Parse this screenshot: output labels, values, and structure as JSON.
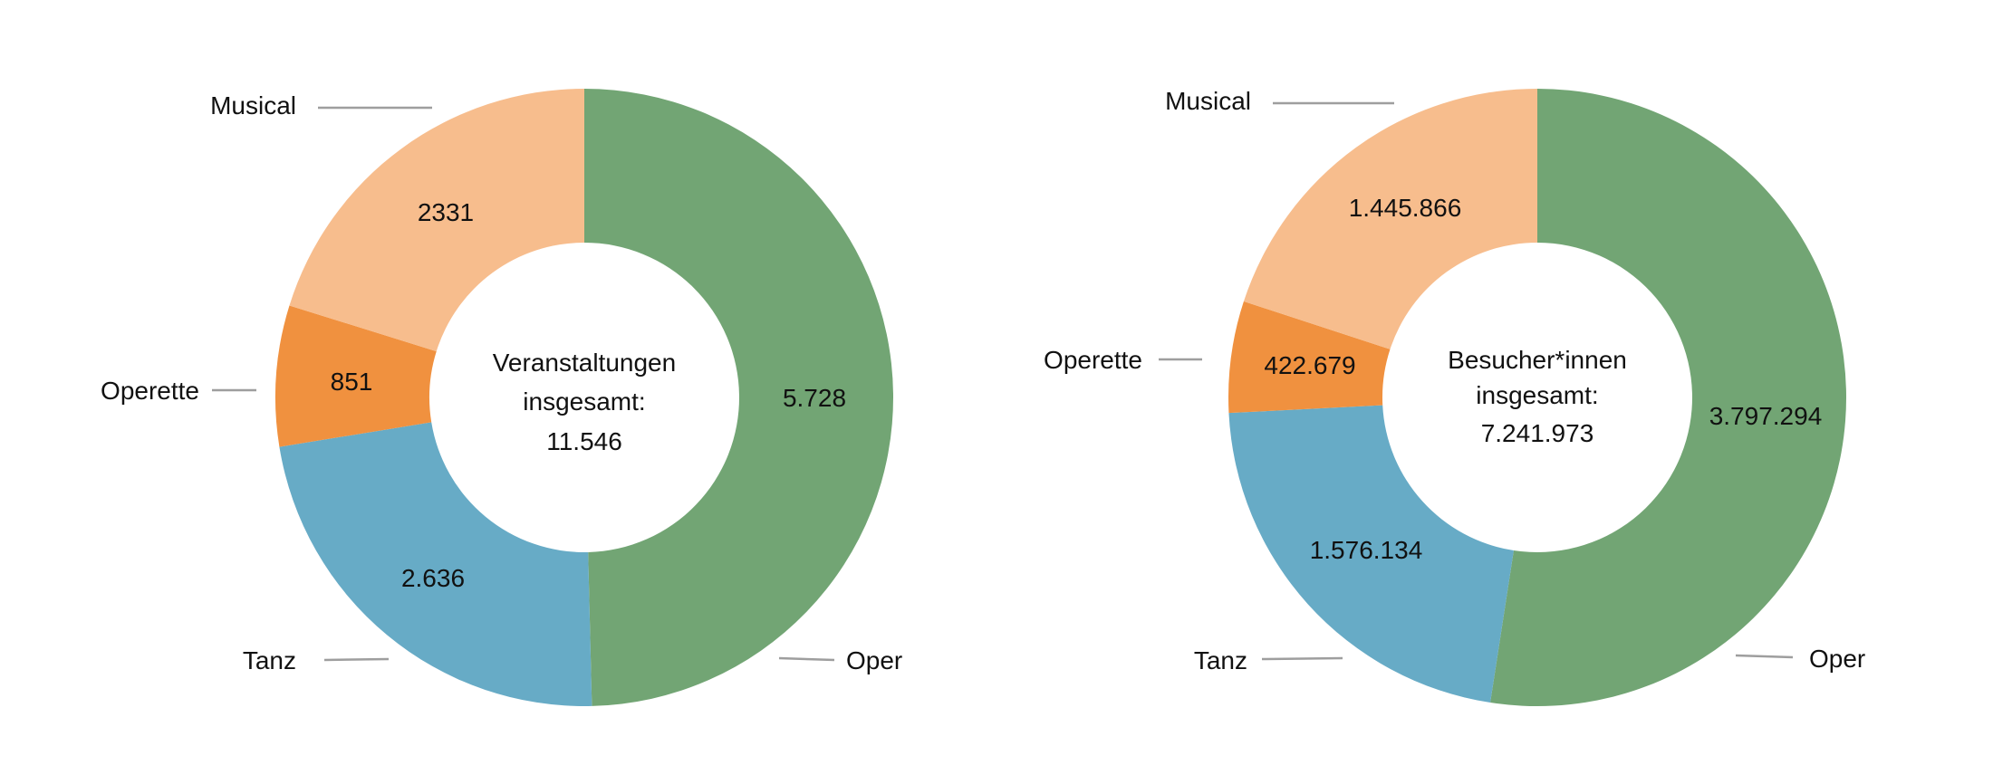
{
  "chart_data": [
    {
      "type": "pie",
      "donut": true,
      "categories": [
        "Oper",
        "Tanz",
        "Operette",
        "Musical"
      ],
      "values": [
        5728,
        2636,
        851,
        2331
      ],
      "value_labels": [
        "5.728",
        "2.636",
        "851",
        "2331"
      ],
      "center_label": [
        "Veranstaltungen",
        "insgesamt:",
        "11.546"
      ],
      "colors": [
        "#72a574",
        "#67abc6",
        "#f0913f",
        "#f7bd8d"
      ],
      "start": "top",
      "direction": "clockwise"
    },
    {
      "type": "pie",
      "donut": true,
      "categories": [
        "Oper",
        "Tanz",
        "Operette",
        "Musical"
      ],
      "values": [
        3797294,
        1576134,
        422679,
        1445866
      ],
      "value_labels": [
        "3.797.294",
        "1.576.134",
        "422.679",
        "1.445.866"
      ],
      "center_label": [
        "Besucher*innen",
        "insgesamt:",
        "7.241.973"
      ],
      "colors": [
        "#72a574",
        "#67abc6",
        "#f0913f",
        "#f7bd8d"
      ],
      "start": "top",
      "direction": "clockwise"
    }
  ]
}
